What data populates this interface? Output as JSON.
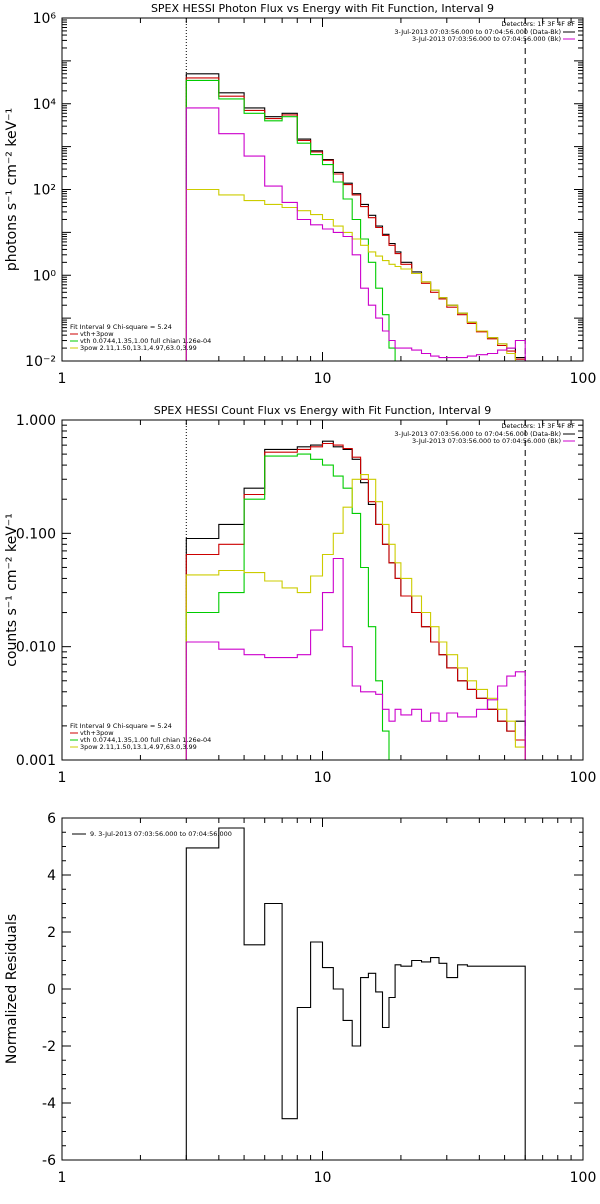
{
  "chart_data": [
    {
      "type": "line",
      "title": "SPEX HESSI Photon Flux vs Energy with Fit Function, Interval 9",
      "xlabel": "",
      "ylabel": "photons s⁻¹ cm⁻² keV⁻¹",
      "xscale": "log",
      "yscale": "log",
      "xlim": [
        1,
        100
      ],
      "ylim": [
        0.01,
        1000000
      ],
      "x_tick_labels": [
        "1",
        "10",
        "100"
      ],
      "y_tick_labels": [
        "10⁻²",
        "10⁰",
        "10²",
        "10⁴",
        "10⁶"
      ],
      "legend_top": {
        "title": "Detectors: 1F 3F 4F 8F",
        "entries": [
          {
            "text": "3-Jul-2013 07:03:56.000 to 07:04:56.000 (Data-Bk)",
            "color": "#000000"
          },
          {
            "text": "3-Jul-2013 07:03:56.000 to 07:04:56.000 (Bk)",
            "color": "#cc00cc"
          }
        ]
      },
      "legend_bottom": {
        "title": "Fit Interval 9   Chi-square = 5.24",
        "entries": [
          {
            "text": "vth+3pow",
            "color": "#cc0000"
          },
          {
            "text": "vth 0.0744,1.35,1.00  full chian 1.26e-04",
            "color": "#00cc00"
          },
          {
            "text": "3pow 2.11,1.50,13.1,4.97,63.0,3.99",
            "color": "#cccc00"
          }
        ]
      },
      "vlines": [
        {
          "x": 3,
          "style": "dotted"
        },
        {
          "x": 60,
          "style": "dashed"
        }
      ],
      "energy_edges": [
        3,
        4,
        5,
        6,
        7,
        8,
        9,
        10,
        11,
        12,
        13,
        14,
        15,
        16,
        17,
        18,
        19,
        20,
        22,
        24,
        26,
        28,
        30,
        33,
        36,
        39,
        43,
        47,
        51,
        55,
        60
      ],
      "series": [
        {
          "name": "Data-Bk",
          "color": "#000000",
          "values": [
            50000,
            18000,
            8000,
            5000,
            6000,
            1500,
            800,
            500,
            250,
            140,
            80,
            45,
            25,
            14,
            9,
            5.5,
            3.5,
            2,
            1.2,
            0.7,
            0.45,
            0.3,
            0.2,
            0.13,
            0.08,
            0.05,
            0.035,
            0.025,
            0.02,
            0.012
          ]
        },
        {
          "name": "vth+3pow",
          "color": "#cc0000",
          "values": [
            40000,
            15000,
            7000,
            4500,
            5500,
            1400,
            750,
            480,
            230,
            130,
            75,
            40,
            22,
            13,
            8.5,
            5,
            3.2,
            1.8,
            1.1,
            0.65,
            0.4,
            0.28,
            0.18,
            0.12,
            0.075,
            0.048,
            0.033,
            0.023,
            0.017,
            0.011
          ]
        },
        {
          "name": "vth",
          "color": "#00cc00",
          "values": [
            35000,
            13000,
            6000,
            4000,
            5000,
            1200,
            650,
            380,
            150,
            60,
            20,
            7,
            2,
            0.5,
            0.12,
            0.02
          ]
        },
        {
          "name": "3pow",
          "color": "#cccc00",
          "values": [
            100,
            75,
            55,
            45,
            38,
            32,
            26,
            20,
            14,
            10,
            7,
            5,
            3.5,
            2.8,
            2.2,
            1.8,
            1.6,
            1.4,
            1.1,
            0.7,
            0.45,
            0.3,
            0.2,
            0.13,
            0.08,
            0.05,
            0.035,
            0.025,
            0.015,
            0.01
          ]
        },
        {
          "name": "Bk",
          "color": "#cc00cc",
          "values": [
            8000,
            2000,
            600,
            120,
            50,
            20,
            15,
            12,
            10,
            8,
            3,
            0.5,
            0.2,
            0.1,
            0.05,
            0.03,
            0.02,
            0.02,
            0.018,
            0.015,
            0.013,
            0.012,
            0.012,
            0.012,
            0.013,
            0.014,
            0.015,
            0.018,
            0.02,
            0.03
          ]
        }
      ]
    },
    {
      "type": "line",
      "title": "SPEX HESSI Count Flux vs Energy with Fit Function, Interval 9",
      "xlabel": "",
      "ylabel": "counts s⁻¹ cm⁻² keV⁻¹",
      "xscale": "log",
      "yscale": "log",
      "xlim": [
        1,
        100
      ],
      "ylim": [
        0.001,
        1
      ],
      "x_tick_labels": [
        "1",
        "10",
        "100"
      ],
      "y_tick_labels": [
        "0.001",
        "0.010",
        "0.100",
        "1.000"
      ],
      "legend_top": {
        "title": "Detectors: 1F 3F 4F 8F",
        "entries": [
          {
            "text": "3-Jul-2013 07:03:56.000 to 07:04:56.000 (Data-Bk)",
            "color": "#000000"
          },
          {
            "text": "3-Jul-2013 07:03:56.000 to 07:04:56.000 (Bk)",
            "color": "#cc00cc"
          }
        ]
      },
      "legend_bottom": {
        "title": "Fit Interval 9   Chi-square = 5.24",
        "entries": [
          {
            "text": "vth+3pow",
            "color": "#cc0000"
          },
          {
            "text": "vth 0.0744,1.35,1.00  full chian 1.26e-04",
            "color": "#00cc00"
          },
          {
            "text": "3pow 2.11,1.50,13.1,4.97,63.0,3.99",
            "color": "#cccc00"
          }
        ]
      },
      "vlines": [
        {
          "x": 3,
          "style": "dotted"
        },
        {
          "x": 60,
          "style": "dashed"
        }
      ],
      "energy_edges": [
        3,
        4,
        5,
        6,
        7,
        8,
        9,
        10,
        11,
        12,
        13,
        14,
        15,
        16,
        17,
        18,
        19,
        20,
        22,
        24,
        26,
        28,
        30,
        33,
        36,
        39,
        43,
        47,
        51,
        55,
        60
      ],
      "series": [
        {
          "name": "Data-Bk",
          "color": "#000000",
          "values": [
            0.09,
            0.12,
            0.25,
            0.55,
            0.55,
            0.58,
            0.6,
            0.65,
            0.58,
            0.55,
            0.45,
            0.28,
            0.18,
            0.12,
            0.08,
            0.055,
            0.04,
            0.028,
            0.02,
            0.015,
            0.011,
            0.0085,
            0.0065,
            0.005,
            0.0042,
            0.0035,
            0.0028,
            0.0022,
            0.0018,
            0.0022
          ]
        },
        {
          "name": "vth+3pow",
          "color": "#cc0000",
          "values": [
            0.065,
            0.08,
            0.22,
            0.52,
            0.52,
            0.55,
            0.58,
            0.62,
            0.6,
            0.56,
            0.47,
            0.3,
            0.19,
            0.12,
            0.08,
            0.055,
            0.04,
            0.028,
            0.02,
            0.015,
            0.011,
            0.0085,
            0.0065,
            0.005,
            0.0042,
            0.0035,
            0.0028,
            0.0022,
            0.0018,
            0.0015
          ]
        },
        {
          "name": "vth",
          "color": "#00cc00",
          "values": [
            0.02,
            0.03,
            0.2,
            0.48,
            0.48,
            0.5,
            0.45,
            0.4,
            0.32,
            0.25,
            0.15,
            0.05,
            0.015,
            0.005,
            0.0018,
            0.0009
          ]
        },
        {
          "name": "3pow",
          "color": "#cccc00",
          "values": [
            0.043,
            0.047,
            0.045,
            0.038,
            0.033,
            0.03,
            0.042,
            0.065,
            0.1,
            0.17,
            0.3,
            0.33,
            0.3,
            0.19,
            0.12,
            0.08,
            0.055,
            0.04,
            0.028,
            0.02,
            0.015,
            0.011,
            0.0085,
            0.0065,
            0.005,
            0.0042,
            0.0035,
            0.0028,
            0.0022,
            0.0013
          ]
        },
        {
          "name": "Bk",
          "color": "#cc00cc",
          "values": [
            0.011,
            0.0095,
            0.0085,
            0.008,
            0.008,
            0.0085,
            0.014,
            0.03,
            0.06,
            0.01,
            0.0045,
            0.004,
            0.004,
            0.0038,
            0.0028,
            0.0022,
            0.0028,
            0.0025,
            0.0028,
            0.0022,
            0.0026,
            0.0022,
            0.0026,
            0.0024,
            0.0024,
            0.0028,
            0.0034,
            0.0045,
            0.0055,
            0.006
          ]
        }
      ]
    },
    {
      "type": "line",
      "title": "",
      "xlabel": "",
      "ylabel": "Normalized Residuals",
      "xscale": "log",
      "yscale": "linear",
      "xlim": [
        1,
        100
      ],
      "ylim": [
        -6,
        6
      ],
      "x_tick_labels": [
        "1",
        "10",
        "100"
      ],
      "y_tick_labels": [
        "-6",
        "-4",
        "-2",
        "0",
        "2",
        "4",
        "6"
      ],
      "legend_top": {
        "title": "",
        "entries": [
          {
            "text": "9.  3-Jul-2013 07:03:56.000 to 07:04:56.000",
            "color": "#000000"
          }
        ]
      },
      "energy_edges": [
        3,
        4,
        5,
        6,
        7,
        8,
        9,
        10,
        11,
        12,
        13,
        14,
        15,
        16,
        17,
        18,
        19,
        20,
        22,
        24,
        26,
        28,
        30,
        33,
        36,
        39,
        43,
        47,
        51,
        55,
        60
      ],
      "series": [
        {
          "name": "",
          "color": "#000000",
          "values": [
            4.95,
            5.65,
            1.55,
            3.0,
            -4.55,
            -0.65,
            1.65,
            0.75,
            0.0,
            -1.1,
            -2.0,
            0.4,
            0.55,
            -0.1,
            -1.35,
            -0.3,
            0.85,
            0.8,
            1.0,
            0.95,
            1.1,
            0.9,
            0.4,
            0.85,
            0.8,
            0.8,
            0.8,
            0.8,
            0.8,
            0.8
          ]
        }
      ]
    }
  ]
}
